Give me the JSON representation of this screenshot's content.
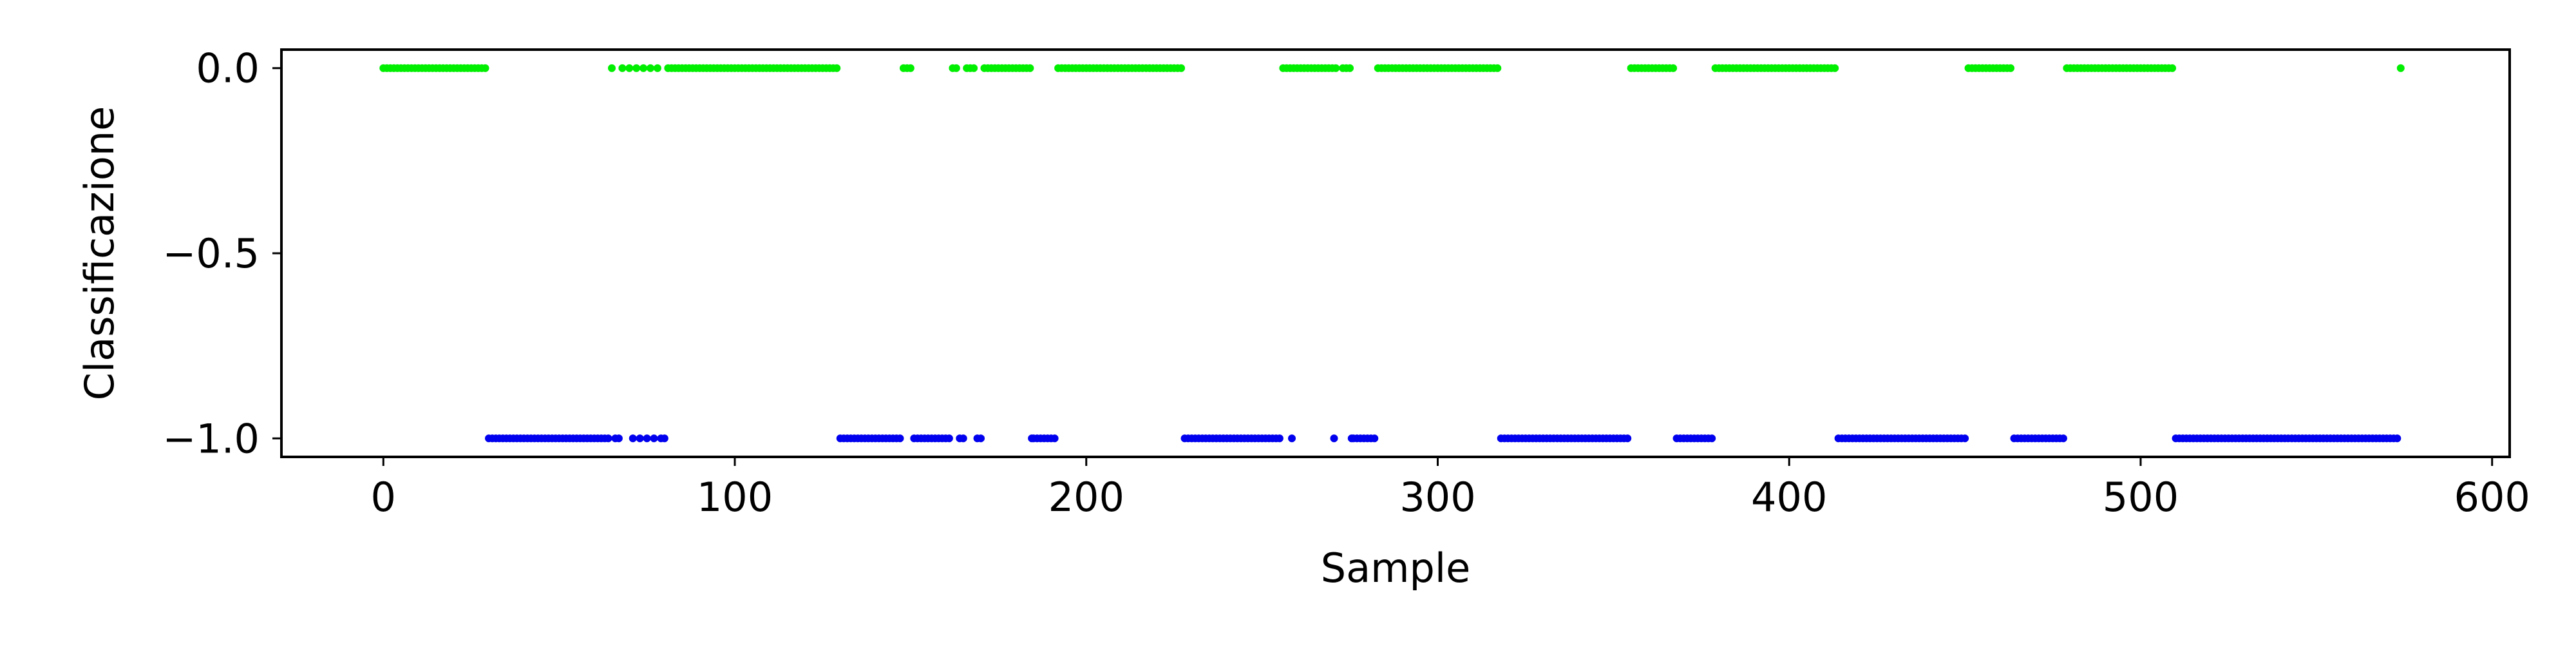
{
  "chart_data": {
    "type": "scatter",
    "title": "",
    "xlabel": "Sample",
    "ylabel": "Classificazione",
    "xlim": [
      -29,
      605
    ],
    "ylim": [
      -1.05,
      0.05
    ],
    "grid": false,
    "legend": "none",
    "x_ticks": [
      0,
      100,
      200,
      300,
      400,
      500,
      600
    ],
    "x_tick_labels": [
      "0",
      "100",
      "200",
      "300",
      "400",
      "500",
      "600"
    ],
    "y_ticks": [
      0.0,
      -0.5,
      -1.0
    ],
    "y_tick_labels": [
      "0.0",
      "−0.5",
      "−1.0"
    ],
    "series": [
      {
        "value": 0.0,
        "color": "#00ee00",
        "x": [
          0,
          1,
          2,
          3,
          4,
          5,
          6,
          7,
          8,
          9,
          10,
          11,
          12,
          13,
          14,
          15,
          16,
          17,
          18,
          19,
          20,
          21,
          22,
          23,
          24,
          25,
          26,
          27,
          28,
          29,
          65,
          68,
          70,
          72,
          74,
          76,
          78,
          81,
          82,
          83,
          84,
          85,
          86,
          87,
          88,
          89,
          90,
          91,
          92,
          93,
          94,
          95,
          96,
          97,
          98,
          99,
          100,
          101,
          102,
          103,
          104,
          105,
          106,
          107,
          108,
          109,
          110,
          111,
          112,
          113,
          114,
          115,
          116,
          117,
          118,
          119,
          120,
          121,
          122,
          123,
          124,
          125,
          126,
          127,
          128,
          129,
          148,
          149,
          150,
          162,
          163,
          166,
          167,
          168,
          171,
          172,
          173,
          174,
          175,
          176,
          177,
          178,
          179,
          180,
          181,
          182,
          183,
          184,
          192,
          193,
          194,
          195,
          196,
          197,
          198,
          199,
          200,
          201,
          202,
          203,
          204,
          205,
          206,
          207,
          208,
          209,
          210,
          211,
          212,
          213,
          214,
          215,
          216,
          217,
          218,
          219,
          220,
          221,
          222,
          223,
          224,
          225,
          226,
          227,
          256,
          257,
          258,
          259,
          260,
          261,
          262,
          263,
          264,
          265,
          266,
          267,
          268,
          269,
          270,
          271,
          273,
          274,
          275,
          283,
          284,
          285,
          286,
          287,
          288,
          289,
          290,
          291,
          292,
          293,
          294,
          295,
          296,
          297,
          298,
          299,
          300,
          301,
          302,
          303,
          304,
          305,
          306,
          307,
          308,
          309,
          310,
          311,
          312,
          313,
          314,
          315,
          316,
          317,
          355,
          356,
          357,
          358,
          359,
          360,
          361,
          362,
          363,
          364,
          365,
          366,
          367,
          379,
          380,
          381,
          382,
          383,
          384,
          385,
          386,
          387,
          388,
          389,
          390,
          391,
          392,
          393,
          394,
          395,
          396,
          397,
          398,
          399,
          400,
          401,
          402,
          403,
          404,
          405,
          406,
          407,
          408,
          409,
          410,
          411,
          412,
          413,
          451,
          452,
          453,
          454,
          455,
          456,
          457,
          458,
          459,
          460,
          461,
          462,
          463,
          479,
          480,
          481,
          482,
          483,
          484,
          485,
          486,
          487,
          488,
          489,
          490,
          491,
          492,
          493,
          494,
          495,
          496,
          497,
          498,
          499,
          500,
          501,
          502,
          503,
          504,
          505,
          506,
          507,
          508,
          509,
          574
        ]
      },
      {
        "value": -1.0,
        "color": "#0000ee",
        "x": [
          30,
          31,
          32,
          33,
          34,
          35,
          36,
          37,
          38,
          39,
          40,
          41,
          42,
          43,
          44,
          45,
          46,
          47,
          48,
          49,
          50,
          51,
          52,
          53,
          54,
          55,
          56,
          57,
          58,
          59,
          60,
          61,
          62,
          63,
          64,
          66,
          67,
          71,
          73,
          75,
          77,
          79,
          80,
          130,
          131,
          132,
          133,
          134,
          135,
          136,
          137,
          138,
          139,
          140,
          141,
          142,
          143,
          144,
          145,
          146,
          147,
          151,
          152,
          153,
          154,
          155,
          156,
          157,
          158,
          159,
          160,
          161,
          164,
          165,
          169,
          170,
          184.5,
          185,
          186,
          187,
          188,
          189,
          190,
          191,
          228,
          229,
          230,
          231,
          232,
          233,
          234,
          235,
          236,
          237,
          238,
          239,
          240,
          241,
          242,
          243,
          244,
          245,
          246,
          247,
          248,
          249,
          250,
          251,
          252,
          253,
          254,
          255,
          258.5,
          270.5,
          275.5,
          276,
          277,
          278,
          279,
          280,
          281,
          282,
          318,
          319,
          320,
          321,
          322,
          323,
          324,
          325,
          326,
          327,
          328,
          329,
          330,
          331,
          332,
          333,
          334,
          335,
          336,
          337,
          338,
          339,
          340,
          341,
          342,
          343,
          344,
          345,
          346,
          347,
          348,
          349,
          350,
          351,
          352,
          353,
          354,
          368,
          369,
          370,
          371,
          372,
          373,
          374,
          375,
          376,
          377,
          378,
          414,
          415,
          416,
          417,
          418,
          419,
          420,
          421,
          422,
          423,
          424,
          425,
          426,
          427,
          428,
          429,
          430,
          431,
          432,
          433,
          434,
          435,
          436,
          437,
          438,
          439,
          440,
          441,
          442,
          443,
          444,
          445,
          446,
          447,
          448,
          449,
          450,
          464,
          465,
          466,
          467,
          468,
          469,
          470,
          471,
          472,
          473,
          474,
          475,
          476,
          477,
          478,
          510,
          511,
          512,
          513,
          514,
          515,
          516,
          517,
          518,
          519,
          520,
          521,
          522,
          523,
          524,
          525,
          526,
          527,
          528,
          529,
          530,
          531,
          532,
          533,
          534,
          535,
          536,
          537,
          538,
          539,
          540,
          541,
          542,
          543,
          544,
          545,
          546,
          547,
          548,
          549,
          550,
          551,
          552,
          553,
          554,
          555,
          556,
          557,
          558,
          559,
          560,
          561,
          562,
          563,
          564,
          565,
          566,
          567,
          568,
          569,
          570,
          571,
          572,
          573
        ]
      }
    ]
  }
}
